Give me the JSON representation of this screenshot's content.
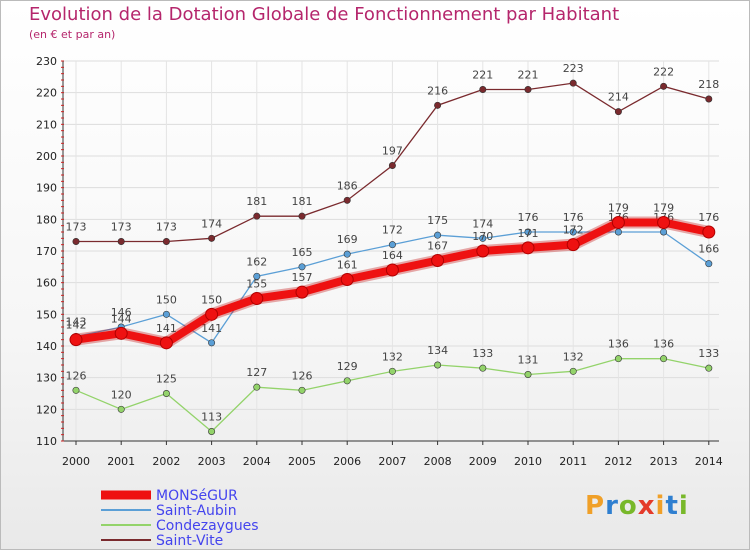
{
  "header": {
    "title": "Evolution de la Dotation Globale de Fonctionnement par Habitant",
    "subtitle": "(en € et par an)"
  },
  "logo": {
    "letters": [
      "P",
      "r",
      "o",
      "x",
      "i",
      "t",
      "i"
    ],
    "colors": [
      "#f0a028",
      "#2f7fd0",
      "#78b82a",
      "#e43a2a",
      "#f0a028",
      "#2f7fd0",
      "#78b82a"
    ]
  },
  "chart_data": {
    "type": "line",
    "title": "Evolution de la Dotation Globale de Fonctionnement par Habitant",
    "ylabel": "(en € et par an)",
    "xlabel": "",
    "categories": [
      "2000",
      "2001",
      "2002",
      "2003",
      "2004",
      "2005",
      "2006",
      "2007",
      "2008",
      "2009",
      "2010",
      "2011",
      "2012",
      "2013",
      "2014"
    ],
    "ylim": [
      110,
      230
    ],
    "yticks": [
      110,
      120,
      130,
      140,
      150,
      160,
      170,
      180,
      190,
      200,
      210,
      220,
      230
    ],
    "series": [
      {
        "name": "Saint-Vite",
        "color": "#7a2a2e",
        "values": [
          173,
          173,
          173,
          174,
          181,
          181,
          186,
          197,
          216,
          221,
          221,
          223,
          214,
          222,
          218
        ]
      },
      {
        "name": "Saint-Aubin",
        "color": "#5b9fd6",
        "values": [
          143,
          146,
          150,
          141,
          162,
          165,
          169,
          172,
          175,
          174,
          176,
          176,
          176,
          176,
          166
        ]
      },
      {
        "name": "Condezaygues",
        "color": "#93d36a",
        "values": [
          126,
          120,
          125,
          113,
          127,
          126,
          129,
          132,
          134,
          133,
          131,
          132,
          136,
          136,
          133
        ]
      },
      {
        "name": "MONSéGUR",
        "color": "#ee1111",
        "values": [
          142,
          144,
          141,
          150,
          155,
          157,
          161,
          164,
          167,
          170,
          171,
          172,
          179,
          179,
          176
        ]
      }
    ],
    "legend": {
      "position": "bottom-left",
      "order": [
        "MONSéGUR",
        "Saint-Aubin",
        "Condezaygues",
        "Saint-Vite"
      ],
      "text_color": "#4444ee"
    }
  }
}
